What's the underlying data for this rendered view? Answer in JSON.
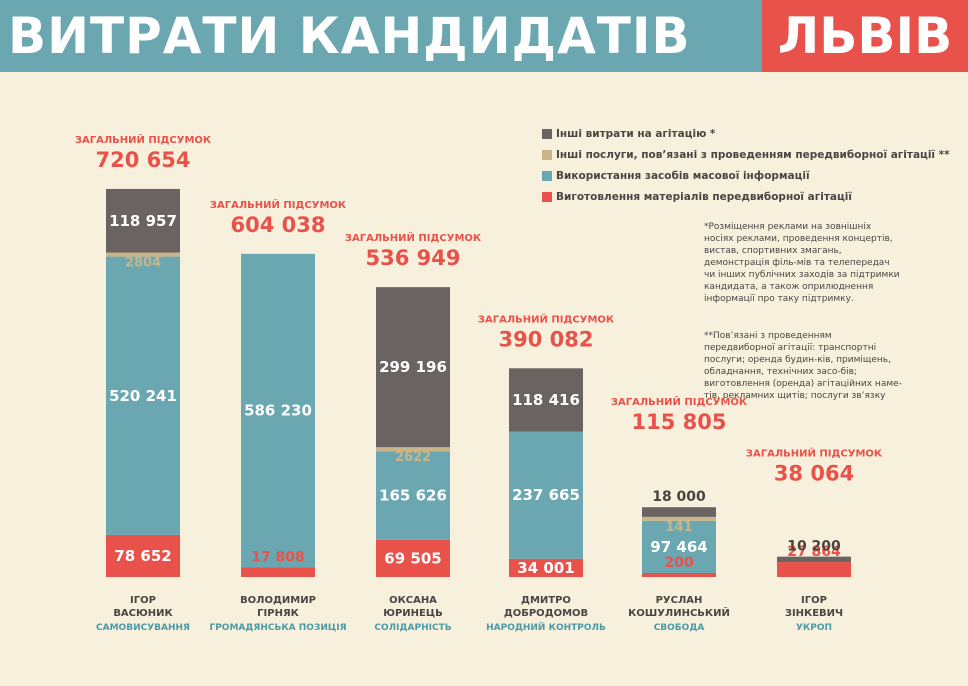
{
  "header": {
    "title": "ВИТРАТИ КАНДИДАТІВ",
    "city": "ЛЬВІВ"
  },
  "colors": {
    "other_agitation": "#6b6361",
    "other_services": "#c8b68a",
    "media": "#6aa7b1",
    "materials": "#e9524a",
    "total_label": "#e9524a",
    "name_text": "#4a4543",
    "party_text": "#4a9aa8"
  },
  "legend": [
    {
      "key": "other_agitation",
      "label": "Інші витрати на агітацію *"
    },
    {
      "key": "other_services",
      "label": "Інші послуги, пов’язані з проведенням передвиборної агітації **"
    },
    {
      "key": "media",
      "label": "Використання засобів масової інформації"
    },
    {
      "key": "materials",
      "label": "Виготовлення матеріалів передвиборної агітації"
    }
  ],
  "notes": [
    "*Розміщення реклами на зовнішніх носіях реклами, проведення концертів, вистав, спортивних змагань, демонстрація філь-мів та телепередач чи інших публічних заходів за підтримки кандидата, а також оприлюднення інформації про таку підтримку.",
    "**Пов’язані з проведенням передвиборної агітації: транспортні послуги; оренда будин-ків, приміщень, обладнання, технічних засо-бів; виготовлення (оренда) агітаційних наме-тів, рекламних щитів; послуги зв’язку"
  ],
  "chart_data": {
    "type": "bar",
    "stacked": true,
    "total_label": "ЗАГАЛЬНИЙ ПІДСУМОК",
    "candidates": [
      {
        "name": "ІГОР ВАСЮНИК",
        "name_lines": [
          "ІГОР",
          "ВАСЮНИК"
        ],
        "party": "САМОВИСУВАННЯ",
        "total": "720 654",
        "values": {
          "materials": 78652,
          "media": 520241,
          "other_services": 2804,
          "other_agitation": 118957
        },
        "labels": {
          "materials": "78 652",
          "media": "520 241",
          "other_services": "2804",
          "other_agitation": "118 957"
        }
      },
      {
        "name": "ВОЛОДИМИР ГІРНЯК",
        "name_lines": [
          "ВОЛОДИМИР",
          "ГІРНЯК"
        ],
        "party": "ГРОМАДЯНСЬКА ПОЗИЦІЯ",
        "total": "604 038",
        "values": {
          "materials": 17808,
          "media": 586230,
          "other_services": 0,
          "other_agitation": 0
        },
        "labels": {
          "materials": "17 808",
          "media": "586 230"
        }
      },
      {
        "name": "ОКСАНА ЮРИНЕЦЬ",
        "name_lines": [
          "ОКСАНА",
          "ЮРИНЕЦЬ"
        ],
        "party": "СОЛІДАРНІСТЬ",
        "total": "536 949",
        "values": {
          "materials": 69505,
          "media": 165626,
          "other_services": 2622,
          "other_agitation": 299196
        },
        "labels": {
          "materials": "69 505",
          "media": "165 626",
          "other_services": "2622",
          "other_agitation": "299 196"
        }
      },
      {
        "name": "ДМИТРО ДОБРОДОМОВ",
        "name_lines": [
          "ДМИТРО",
          "ДОБРОДОМОВ"
        ],
        "party": "НАРОДНИЙ КОНТРОЛЬ",
        "total": "390 082",
        "values": {
          "materials": 34001,
          "media": 237665,
          "other_services": 0,
          "other_agitation": 118416
        },
        "labels": {
          "materials": "34 001",
          "media": "237 665",
          "other_agitation": "118 416"
        }
      },
      {
        "name": "РУСЛАН КОШУЛИНСЬКИЙ",
        "name_lines": [
          "РУСЛАН",
          "КОШУЛИНСЬКИЙ"
        ],
        "party": "СВОБОДА",
        "total": "115 805",
        "values": {
          "materials": 200,
          "media": 97464,
          "other_services": 141,
          "other_agitation": 18000
        },
        "labels": {
          "materials": "200",
          "media": "97 464",
          "other_services": "141",
          "other_agitation": "18 000"
        }
      },
      {
        "name": "ІГОР ЗІНКЕВИЧ",
        "name_lines": [
          "ІГОР",
          "ЗІНКЕВИЧ"
        ],
        "party": "УКРОП",
        "total": "38 064",
        "values": {
          "materials": 27864,
          "media": 0,
          "other_services": 0,
          "other_agitation": 10200
        },
        "labels": {
          "materials": "27 864",
          "other_agitation": "10 200"
        }
      }
    ]
  }
}
